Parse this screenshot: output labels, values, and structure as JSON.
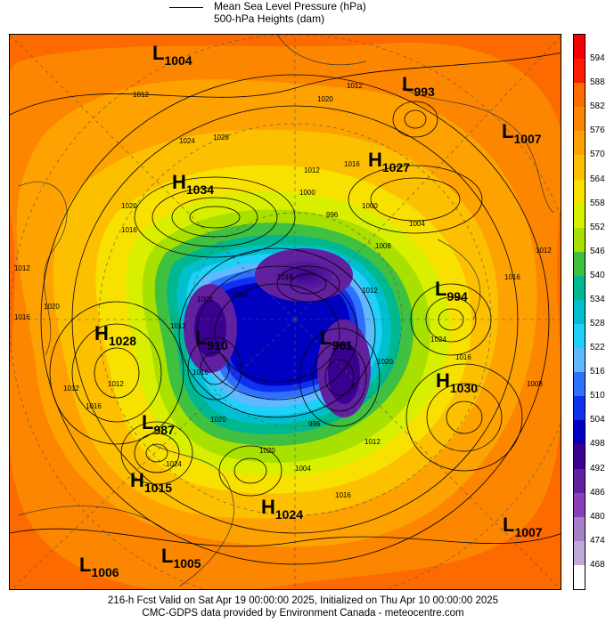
{
  "legend": {
    "items": [
      {
        "label": "Mean Sea Level Pressure (hPa)",
        "style": "line"
      },
      {
        "label": "500-hPa Heights (dam)",
        "style": "fill"
      }
    ]
  },
  "footer": {
    "line1": "216-h Fcst Valid on Sat Apr 19 00:00:00 2025, Initialized on Thu Apr 10 00:00:00 2025",
    "line2": "CMC-GDPS data provided by Environment Canada - meteocentre.com"
  },
  "colorbar": {
    "labels": [
      "594",
      "588",
      "582",
      "576",
      "570",
      "564",
      "558",
      "552",
      "546",
      "540",
      "534",
      "528",
      "522",
      "516",
      "510",
      "504",
      "498",
      "492",
      "486",
      "480",
      "474",
      "468"
    ],
    "colors": [
      "#f40000",
      "#fb1c00",
      "#fc6a00",
      "#fc8600",
      "#fda200",
      "#fdc000",
      "#f8e000",
      "#d8f000",
      "#a8e000",
      "#40c040",
      "#00b890",
      "#00c0d0",
      "#20d0f8",
      "#60b8ff",
      "#3070ff",
      "#1030f0",
      "#0000c0",
      "#3a0090",
      "#6020a0",
      "#8840b8",
      "#a880c8",
      "#c0a8d8",
      "#ffffff"
    ]
  },
  "pressure_systems": [
    {
      "type": "L",
      "value": "1004"
    },
    {
      "type": "L",
      "value": "993"
    },
    {
      "type": "L",
      "value": "1007"
    },
    {
      "type": "H",
      "value": "1027"
    },
    {
      "type": "H",
      "value": "1034"
    },
    {
      "type": "L",
      "value": "994"
    },
    {
      "type": "H",
      "value": "1028"
    },
    {
      "type": "L",
      "value": "910"
    },
    {
      "type": "L",
      "value": "961"
    },
    {
      "type": "H",
      "value": "1030"
    },
    {
      "type": "L",
      "value": "987"
    },
    {
      "type": "H",
      "value": "1015"
    },
    {
      "type": "H",
      "value": "1024"
    },
    {
      "type": "L",
      "value": "1007"
    },
    {
      "type": "L",
      "value": "1006"
    },
    {
      "type": "L",
      "value": "1005"
    }
  ],
  "isobar_labels": [
    "1012",
    "1020",
    "1012",
    "1024",
    "1028",
    "1016",
    "1012",
    "1016",
    "1020",
    "1012",
    "1016",
    "1020",
    "1012",
    "1016",
    "1024",
    "1020",
    "1016",
    "1012",
    "1008",
    "1004",
    "1016",
    "1000",
    "996",
    "1000",
    "1024",
    "1016",
    "1020",
    "1012",
    "1008",
    "1004",
    "1016",
    "1012",
    "1008",
    "996",
    "1004",
    "1016",
    "1012",
    "1020",
    "1012"
  ]
}
